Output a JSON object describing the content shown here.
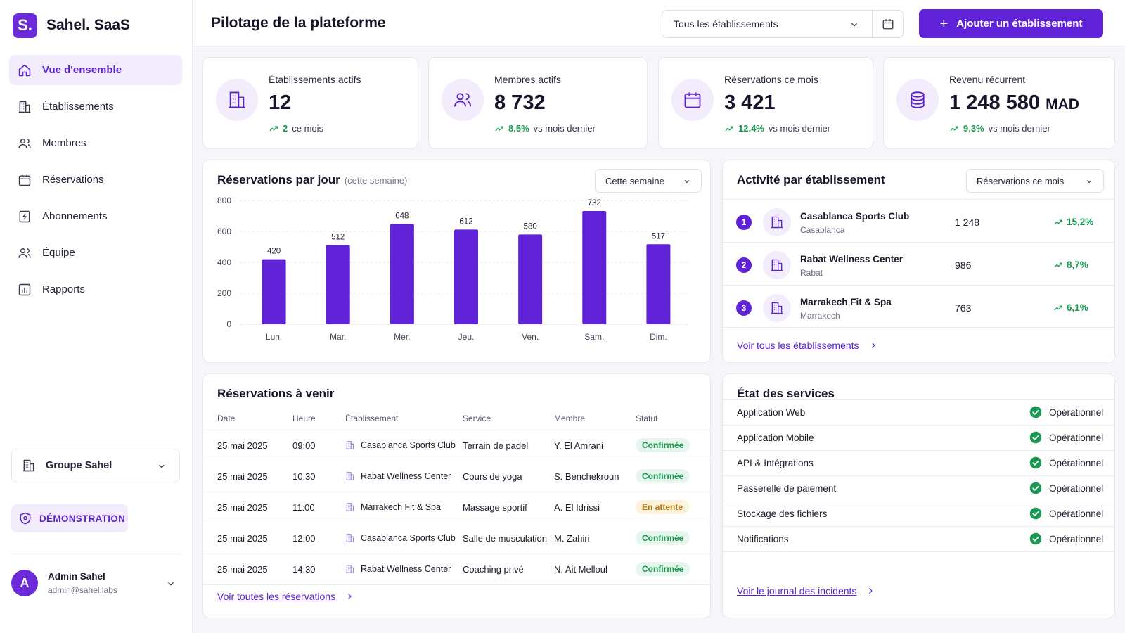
{
  "brand": {
    "logo_letter": "S.",
    "name": "Sahel. SaaS"
  },
  "sidebar": {
    "items": [
      {
        "label": "Vue d'ensemble",
        "icon": "home-icon"
      },
      {
        "label": "Établissements",
        "icon": "building-icon"
      },
      {
        "label": "Membres",
        "icon": "users-icon"
      },
      {
        "label": "Réservations",
        "icon": "calendar-icon"
      },
      {
        "label": "Abonnements",
        "icon": "subscription-icon"
      },
      {
        "label": "Équipe",
        "icon": "team-icon"
      },
      {
        "label": "Rapports",
        "icon": "report-icon"
      }
    ],
    "group": "Groupe Sahel",
    "demo_label": "DÉMONSTRATION",
    "user": {
      "initial": "A",
      "name": "Admin Sahel",
      "email": "admin@sahel.labs"
    }
  },
  "header": {
    "title": "Pilotage de la plateforme",
    "establishment_filter": "Tous les établissements",
    "add_button": "Ajouter un établissement",
    "add_symbol": "+"
  },
  "kpis": [
    {
      "label": "Établissements actifs",
      "value": "12",
      "unit": "",
      "delta": "2",
      "delta_text": "ce mois",
      "icon": "building-icon"
    },
    {
      "label": "Membres actifs",
      "value": "8 732",
      "unit": "",
      "delta": "8,5%",
      "delta_text": "vs mois dernier",
      "icon": "users-icon"
    },
    {
      "label": "Réservations ce mois",
      "value": "3 421",
      "unit": "",
      "delta": "12,4%",
      "delta_text": "vs mois dernier",
      "icon": "calendar-icon"
    },
    {
      "label": "Revenu récurrent",
      "value": "1 248 580",
      "unit": "MAD",
      "delta": "9,3%",
      "delta_text": "vs mois dernier",
      "icon": "database-icon"
    }
  ],
  "chart_card": {
    "title": "Réservations par jour",
    "subtitle": "(cette semaine)",
    "period": "Cette semaine"
  },
  "chart_data": {
    "type": "bar",
    "title": "Réservations par jour",
    "subtitle": "(cette semaine)",
    "categories": [
      "Lun.",
      "Mar.",
      "Mer.",
      "Jeu.",
      "Ven.",
      "Sam.",
      "Dim."
    ],
    "values": [
      420,
      512,
      648,
      612,
      580,
      732,
      517
    ],
    "yticks": [
      0,
      200,
      400,
      600,
      800
    ],
    "ylim": [
      0,
      800
    ],
    "grid": true,
    "color": "#5f22d6"
  },
  "activity": {
    "title": "Activité par établissement",
    "filter": "Réservations ce mois",
    "rows": [
      {
        "rank": "1",
        "name": "Casablanca Sports Club",
        "city": "Casablanca",
        "value": "1 248",
        "trend": "15,2%"
      },
      {
        "rank": "2",
        "name": "Rabat Wellness Center",
        "city": "Rabat",
        "value": "986",
        "trend": "8,7%"
      },
      {
        "rank": "3",
        "name": "Marrakech Fit & Spa",
        "city": "Marrakech",
        "value": "763",
        "trend": "6,1%"
      }
    ],
    "link": "Voir tous les établissements"
  },
  "reservations": {
    "title": "Réservations à venir",
    "columns": [
      "Date",
      "Heure",
      "Établissement",
      "Service",
      "Membre",
      "Statut"
    ],
    "rows": [
      {
        "date": "25 mai 2025",
        "time": "09:00",
        "est": "Casablanca Sports Club",
        "service": "Terrain de padel",
        "member": "Y. El Amrani",
        "status": "Confirmée",
        "kind": "ok"
      },
      {
        "date": "25 mai 2025",
        "time": "10:30",
        "est": "Rabat Wellness Center",
        "service": "Cours de yoga",
        "member": "S. Benchekroun",
        "status": "Confirmée",
        "kind": "ok"
      },
      {
        "date": "25 mai 2025",
        "time": "11:00",
        "est": "Marrakech Fit & Spa",
        "service": "Massage sportif",
        "member": "A. El Idrissi",
        "status": "En attente",
        "kind": "wait"
      },
      {
        "date": "25 mai 2025",
        "time": "12:00",
        "est": "Casablanca Sports Club",
        "service": "Salle de musculation",
        "member": "M. Zahiri",
        "status": "Confirmée",
        "kind": "ok"
      },
      {
        "date": "25 mai 2025",
        "time": "14:30",
        "est": "Rabat Wellness Center",
        "service": "Coaching privé",
        "member": "N. Ait Melloul",
        "status": "Confirmée",
        "kind": "ok"
      }
    ],
    "link": "Voir toutes les réservations"
  },
  "services": {
    "title": "État des services",
    "rows": [
      {
        "name": "Application Web",
        "status": "Opérationnel"
      },
      {
        "name": "Application Mobile",
        "status": "Opérationnel"
      },
      {
        "name": "API & Intégrations",
        "status": "Opérationnel"
      },
      {
        "name": "Passerelle de paiement",
        "status": "Opérationnel"
      },
      {
        "name": "Stockage des fichiers",
        "status": "Opérationnel"
      },
      {
        "name": "Notifications",
        "status": "Opérationnel"
      }
    ],
    "link": "Voir le journal des incidents"
  },
  "colors": {
    "accent": "#5f22d6",
    "accent_soft": "#f2ecfc",
    "success": "#17994f",
    "warning": "#b07612"
  }
}
